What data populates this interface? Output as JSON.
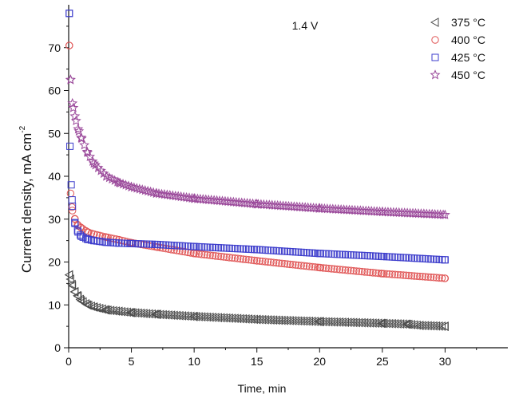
{
  "chart_data": {
    "type": "scatter",
    "title": "",
    "annotation": "1.4 V",
    "xlabel": "Time, min",
    "ylabel": "Current density, mA cm",
    "ylabel_superscript": "-2",
    "xlim": [
      0,
      35
    ],
    "ylim": [
      0,
      80
    ],
    "xticks": [
      0,
      5,
      10,
      15,
      20,
      25,
      30
    ],
    "yticks": [
      0,
      10,
      20,
      30,
      40,
      50,
      60,
      70
    ],
    "grid": false,
    "legend_position": "top-right",
    "series": [
      {
        "name": "375 °C",
        "marker": "triangle-left",
        "color": "#4a4a4a",
        "points": [
          [
            0.05,
            17
          ],
          [
            0.15,
            16
          ],
          [
            0.3,
            14.5
          ],
          [
            0.5,
            13
          ],
          [
            0.75,
            12
          ],
          [
            1,
            11
          ],
          [
            1.5,
            10
          ],
          [
            2,
            9.5
          ],
          [
            3,
            8.8
          ],
          [
            4,
            8.5
          ],
          [
            5,
            8.2
          ],
          [
            7,
            7.8
          ],
          [
            10,
            7.3
          ],
          [
            15,
            6.6
          ],
          [
            20,
            6.1
          ],
          [
            25,
            5.7
          ],
          [
            27,
            5.5
          ],
          [
            28,
            5.2
          ],
          [
            30,
            5
          ]
        ]
      },
      {
        "name": "400 °C",
        "marker": "circle",
        "color": "#e05555",
        "points": [
          [
            0.05,
            70.5
          ],
          [
            0.15,
            36
          ],
          [
            0.3,
            32
          ],
          [
            0.5,
            30
          ],
          [
            0.75,
            28.5
          ],
          [
            1,
            28
          ],
          [
            1.5,
            27
          ],
          [
            2,
            26.5
          ],
          [
            3,
            25.8
          ],
          [
            4,
            25.2
          ],
          [
            5,
            24.5
          ],
          [
            7,
            23.5
          ],
          [
            10,
            22
          ],
          [
            15,
            20.3
          ],
          [
            20,
            18.7
          ],
          [
            25,
            17.3
          ],
          [
            30,
            16.2
          ]
        ]
      },
      {
        "name": "425 °C",
        "marker": "square",
        "color": "#3d3dcc",
        "points": [
          [
            0.05,
            78
          ],
          [
            0.1,
            47
          ],
          [
            0.2,
            38
          ],
          [
            0.3,
            33
          ],
          [
            0.5,
            29
          ],
          [
            0.75,
            27
          ],
          [
            1,
            26
          ],
          [
            1.5,
            25.3
          ],
          [
            2,
            25
          ],
          [
            3,
            24.6
          ],
          [
            4,
            24.4
          ],
          [
            5,
            24.3
          ],
          [
            7,
            24.1
          ],
          [
            10,
            23.6
          ],
          [
            15,
            22.9
          ],
          [
            20,
            22
          ],
          [
            25,
            21.3
          ],
          [
            30,
            20.5
          ]
        ]
      },
      {
        "name": "450 °C",
        "marker": "star",
        "color": "#9b4a9b",
        "points": [
          [
            0.15,
            62.5
          ],
          [
            0.3,
            57
          ],
          [
            0.5,
            54
          ],
          [
            0.75,
            51
          ],
          [
            1,
            49
          ],
          [
            1.5,
            45.5
          ],
          [
            2,
            43
          ],
          [
            3,
            40
          ],
          [
            4,
            38.5
          ],
          [
            5,
            37.5
          ],
          [
            7,
            36
          ],
          [
            10,
            34.8
          ],
          [
            15,
            33.5
          ],
          [
            20,
            32.5
          ],
          [
            25,
            31.7
          ],
          [
            30,
            31
          ]
        ]
      }
    ]
  }
}
